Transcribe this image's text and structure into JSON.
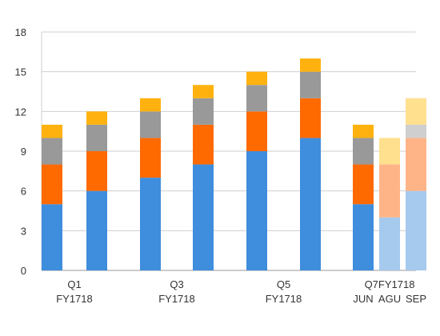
{
  "chart_data": {
    "type": "bar",
    "stacked": true,
    "grid": true,
    "legend": "none",
    "ylim": [
      0,
      18
    ],
    "yticks": [
      0,
      3,
      6,
      9,
      12,
      15,
      18
    ],
    "x_labels": [
      {
        "line1": "Q1",
        "line2": "FY1718",
        "under_bars": [
          0,
          1
        ]
      },
      {
        "line1": "Q3",
        "line2": "FY1718",
        "under_bars": [
          2,
          3
        ]
      },
      {
        "line1": "Q5",
        "line2": "FY1718",
        "under_bars": [
          4,
          5
        ]
      },
      {
        "line1": "Q7FY1718",
        "line2": "",
        "under_bars": [
          7
        ]
      },
      {
        "line1": "",
        "line2": "JUN",
        "under_bars": [
          6
        ]
      },
      {
        "line1": "",
        "line2": "AGU",
        "under_bars": [
          7
        ]
      },
      {
        "line1": "",
        "line2": "SEP",
        "under_bars": [
          8
        ]
      }
    ],
    "bars": [
      {
        "segments": [
          5,
          3,
          2,
          1
        ],
        "faded": false
      },
      {
        "segments": [
          6,
          3,
          2,
          1
        ],
        "faded": false
      },
      {
        "segments": [
          7,
          3,
          2,
          1
        ],
        "faded": false
      },
      {
        "segments": [
          8,
          3,
          2,
          1
        ],
        "faded": false
      },
      {
        "segments": [
          9,
          3,
          2,
          1
        ],
        "faded": false
      },
      {
        "segments": [
          10,
          3,
          2,
          1
        ],
        "faded": false
      },
      {
        "segments": [
          5,
          3,
          2,
          1
        ],
        "faded": false
      },
      {
        "segments": [
          4,
          4,
          0,
          2
        ],
        "faded": true
      },
      {
        "segments": [
          6,
          4,
          1,
          2
        ],
        "faded": true
      }
    ],
    "colors": [
      "#3f8ddd",
      "#ff6a00",
      "#999999",
      "#ffb20f"
    ],
    "faded_colors": [
      "#a6c9ee",
      "#ffb488",
      "#cfcfcf",
      "#ffe08f"
    ]
  }
}
